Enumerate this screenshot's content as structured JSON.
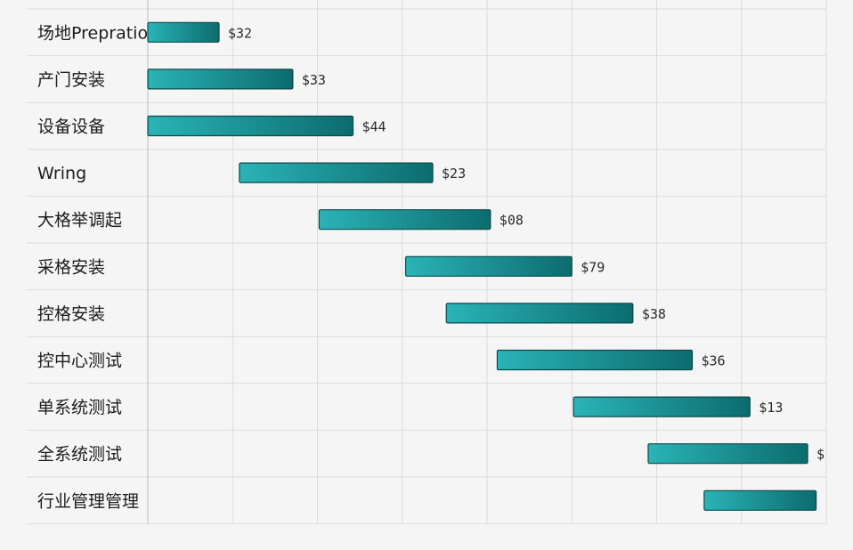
{
  "chart_data": {
    "type": "bar",
    "subtype": "gantt",
    "orientation": "horizontal",
    "categories": [
      "场地Prepration",
      "产门安装",
      "设备设备",
      "Wring",
      "大格举调起",
      "采格安装",
      "控格安装",
      "控中心测试",
      "单系统测试",
      "全系统测试",
      "行业管理管理"
    ],
    "bars": [
      {
        "start": 0.0,
        "end": 0.84,
        "label": "$32"
      },
      {
        "start": 0.0,
        "end": 1.71,
        "label": "$33"
      },
      {
        "start": 0.0,
        "end": 2.42,
        "label": "$44"
      },
      {
        "start": 1.08,
        "end": 3.36,
        "label": "$23"
      },
      {
        "start": 2.02,
        "end": 4.04,
        "label": "$08"
      },
      {
        "start": 3.04,
        "end": 5.0,
        "label": "$79"
      },
      {
        "start": 3.52,
        "end": 5.72,
        "label": "$38"
      },
      {
        "start": 4.12,
        "end": 6.42,
        "label": "$36"
      },
      {
        "start": 5.02,
        "end": 7.1,
        "label": "$13"
      },
      {
        "start": 5.9,
        "end": 7.78,
        "label": "$"
      },
      {
        "start": 6.56,
        "end": 7.88,
        "label": ""
      }
    ],
    "xlim": [
      0,
      8
    ],
    "x_tick_labels_visible": false,
    "grid": true,
    "legend": "none",
    "colors": {
      "bar_light": "#2ab3b6",
      "bar_dark": "#0c6c6e",
      "bar_border": "#0b4a4c",
      "grid": "#dcdcdc",
      "background": "#f5f5f6",
      "text": "#1c1c1c"
    }
  }
}
